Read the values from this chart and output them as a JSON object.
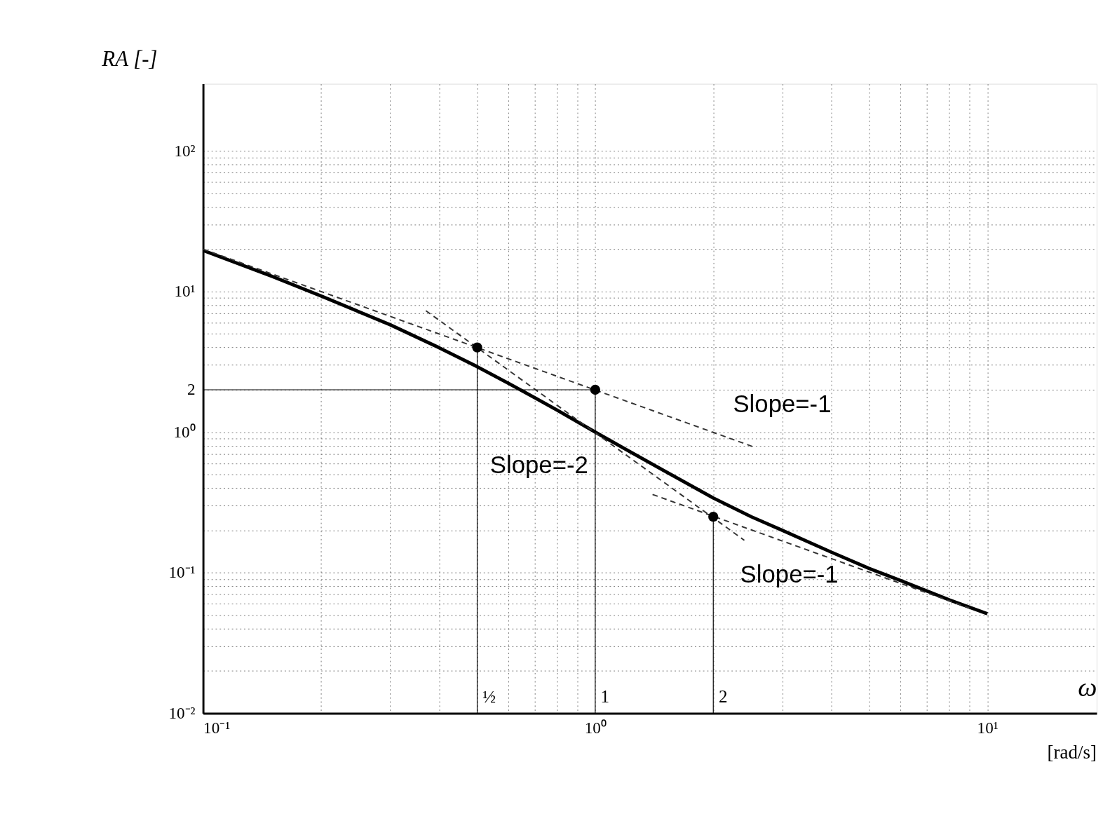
{
  "chart_data": {
    "type": "line",
    "xlabel": "ω",
    "ylabel": "RA [-]",
    "xlim": [
      0.1,
      19
    ],
    "ylim": [
      0.01,
      300
    ],
    "log": "xy",
    "grid": true,
    "xticks": [
      {
        "value": 0.1,
        "label": "10⁻¹"
      },
      {
        "value": 0.2,
        "label": null
      },
      {
        "value": 0.3,
        "label": null
      },
      {
        "value": 0.4,
        "label": null
      },
      {
        "value": 0.5,
        "label": null
      },
      {
        "value": 0.6,
        "label": null
      },
      {
        "value": 0.7,
        "label": null
      },
      {
        "value": 0.8,
        "label": null
      },
      {
        "value": 0.9,
        "label": null
      },
      {
        "value": 1,
        "label": "10⁰"
      },
      {
        "value": 2,
        "label": null
      },
      {
        "value": 3,
        "label": null
      },
      {
        "value": 4,
        "label": null
      },
      {
        "value": 5,
        "label": null
      },
      {
        "value": 6,
        "label": null
      },
      {
        "value": 7,
        "label": null
      },
      {
        "value": 8,
        "label": null
      },
      {
        "value": 9,
        "label": null
      },
      {
        "value": 10,
        "label": "10¹"
      }
    ],
    "yticks": [
      {
        "value": 0.01,
        "label": "10⁻²"
      },
      {
        "value": 0.02,
        "label": null
      },
      {
        "value": 0.03,
        "label": null
      },
      {
        "value": 0.04,
        "label": null
      },
      {
        "value": 0.05,
        "label": null
      },
      {
        "value": 0.06,
        "label": null
      },
      {
        "value": 0.07,
        "label": null
      },
      {
        "value": 0.08,
        "label": null
      },
      {
        "value": 0.09,
        "label": null
      },
      {
        "value": 0.1,
        "label": "10⁻¹"
      },
      {
        "value": 0.2,
        "label": null
      },
      {
        "value": 0.3,
        "label": null
      },
      {
        "value": 0.4,
        "label": null
      },
      {
        "value": 0.5,
        "label": null
      },
      {
        "value": 0.6,
        "label": null
      },
      {
        "value": 0.7,
        "label": null
      },
      {
        "value": 0.8,
        "label": null
      },
      {
        "value": 0.9,
        "label": null
      },
      {
        "value": 1,
        "label": "10⁰"
      },
      {
        "value": 2,
        "label": "2"
      },
      {
        "value": 3,
        "label": null
      },
      {
        "value": 4,
        "label": null
      },
      {
        "value": 5,
        "label": null
      },
      {
        "value": 6,
        "label": null
      },
      {
        "value": 7,
        "label": null
      },
      {
        "value": 8,
        "label": null
      },
      {
        "value": 9,
        "label": null
      },
      {
        "value": 10,
        "label": "10¹"
      },
      {
        "value": 20,
        "label": null
      },
      {
        "value": 30,
        "label": null
      },
      {
        "value": 40,
        "label": null
      },
      {
        "value": 50,
        "label": null
      },
      {
        "value": 60,
        "label": null
      },
      {
        "value": 70,
        "label": null
      },
      {
        "value": 80,
        "label": null
      },
      {
        "value": 90,
        "label": null
      },
      {
        "value": 100,
        "label": "10²"
      }
    ],
    "series": [
      {
        "color": "#000000",
        "line_style": "solid",
        "x": [
          0.1,
          0.15,
          0.2,
          0.3,
          0.4,
          0.5,
          0.6,
          0.7,
          0.8,
          1,
          1.2,
          1.5,
          2,
          2.5,
          3,
          4,
          5,
          6,
          8,
          10
        ],
        "values": [
          19.6,
          12.8,
          9.3,
          5.8,
          3.98,
          2.92,
          2.23,
          1.76,
          1.43,
          1.0,
          0.75,
          0.53,
          0.34,
          0.25,
          0.2,
          0.14,
          0.107,
          0.088,
          0.064,
          0.051
        ]
      },
      {
        "type": "line",
        "color": "#333333",
        "line_style": "dashed",
        "x": [
          0.1,
          2.55
        ],
        "values": [
          20,
          0.78
        ]
      },
      {
        "type": "line",
        "color": "#333333",
        "line_style": "dashed",
        "x": [
          0.37,
          2.4
        ],
        "values": [
          7.3,
          0.17
        ]
      },
      {
        "type": "line",
        "color": "#333333",
        "line_style": "dashed",
        "x": [
          1.4,
          9
        ],
        "values": [
          0.36,
          0.056
        ]
      },
      {
        "type": "line",
        "color": "#000000",
        "line_style": "solid",
        "x": [
          0.5,
          0.5
        ],
        "values": [
          0.01,
          4
        ]
      },
      {
        "type": "line",
        "color": "#000000",
        "line_style": "solid",
        "x": [
          1,
          1
        ],
        "values": [
          0.01,
          2
        ]
      },
      {
        "type": "line",
        "color": "#000000",
        "line_style": "solid",
        "x": [
          2,
          2
        ],
        "values": [
          0.01,
          0.25
        ]
      },
      {
        "type": "line",
        "color": "#000000",
        "line_style": "solid",
        "x": [
          0.1,
          1
        ],
        "values": [
          2,
          2
        ]
      },
      {
        "type": "scatter",
        "color": "#000000",
        "marker": "circle",
        "x": [
          0.5,
          1,
          2
        ],
        "values": [
          4,
          2,
          0.25
        ]
      }
    ],
    "annotations": [
      "Slope=-1",
      "Slope=-2",
      "Slope=-1",
      {
        "text": "½",
        "x": 0.5,
        "y": 0.013
      },
      {
        "text": "1",
        "x": 1,
        "y": 0.013
      },
      {
        "text": "2",
        "x": 2,
        "y": 0.013
      },
      "[rad/s]"
    ]
  }
}
